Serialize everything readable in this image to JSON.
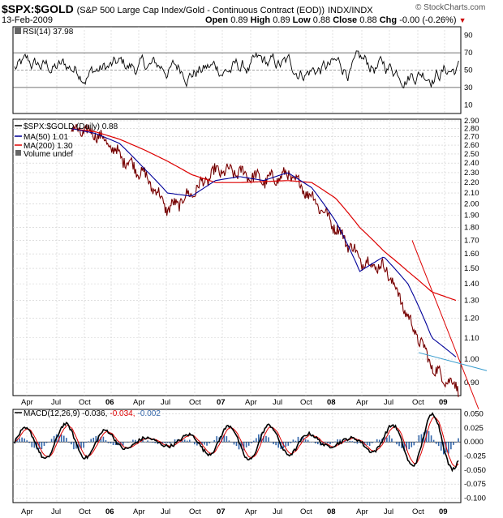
{
  "header": {
    "symbol": "$SPX:$GOLD",
    "description": "(S&P 500 Large Cap Index/Gold - Continuous Contract (EOD))",
    "exchange": "INDX/INDX",
    "date": "13-Feb-2009",
    "open_label": "Open",
    "open": "0.89",
    "high_label": "High",
    "high": "0.89",
    "low_label": "Low",
    "low": "0.88",
    "close_label": "Close",
    "close": "0.88",
    "chg_label": "Chg",
    "chg": "-0.00 (-0.26%)",
    "logo": "© StockCharts.com"
  },
  "chart_data": [
    {
      "type": "line",
      "panel": "rsi",
      "legend": "RSI(14) 37.98",
      "series": [
        {
          "name": "RSI(14)",
          "last": 37.98
        }
      ],
      "yticks": [
        10,
        30,
        50,
        70,
        90
      ],
      "ylim": [
        0,
        100
      ],
      "reference_lines": [
        30,
        50,
        70
      ]
    },
    {
      "type": "line",
      "panel": "price",
      "legend": [
        {
          "text": "$SPX:$GOLD (Daily) 0.88",
          "color": "#000000"
        },
        {
          "text": "MA(50) 1.01",
          "color": "#000099"
        },
        {
          "text": "MA(200) 1.30",
          "color": "#dd0000"
        },
        {
          "text": "Volume undef",
          "color": "#666666"
        }
      ],
      "x_dates": [
        "2005-04",
        "2005-07",
        "2005-10",
        "2006-01",
        "2006-04",
        "2006-07",
        "2006-10",
        "2007-01",
        "2007-04",
        "2007-07",
        "2007-10",
        "2008-01",
        "2008-04",
        "2008-07",
        "2008-10",
        "2009-01",
        "2009-02"
      ],
      "price": [
        2.78,
        2.75,
        2.48,
        2.28,
        1.95,
        2.1,
        2.32,
        2.3,
        2.22,
        2.28,
        2.05,
        1.78,
        1.55,
        1.5,
        1.18,
        0.95,
        0.88
      ],
      "ma50": [
        2.8,
        2.74,
        2.62,
        2.35,
        2.1,
        2.07,
        2.22,
        2.26,
        2.22,
        2.3,
        2.15,
        1.85,
        1.48,
        1.58,
        1.4,
        1.1,
        1.01
      ],
      "ma200": [
        2.8,
        2.76,
        2.67,
        2.55,
        2.42,
        2.28,
        2.2,
        2.2,
        2.21,
        2.22,
        2.2,
        2.05,
        1.8,
        1.62,
        1.48,
        1.35,
        1.3
      ],
      "yticks": [
        0.9,
        1.0,
        1.1,
        1.2,
        1.3,
        1.4,
        1.5,
        1.6,
        1.7,
        1.8,
        1.9,
        2.0,
        2.1,
        2.2,
        2.3,
        2.4,
        2.5,
        2.6,
        2.7,
        2.8,
        2.9
      ],
      "ylim": [
        0.85,
        2.92
      ],
      "scale": "log"
    },
    {
      "type": "line",
      "panel": "macd",
      "legend": [
        {
          "text": "MACD(12,26,9) -0.036,",
          "color": "#000000"
        },
        {
          "text": "-0.034,",
          "color": "#dd0000"
        },
        {
          "text": "-0.002",
          "color": "#3366aa"
        }
      ],
      "yticks": [
        -0.1,
        -0.075,
        -0.05,
        -0.025,
        0.0,
        0.025,
        0.05
      ],
      "ylim": [
        -0.108,
        0.058
      ]
    }
  ],
  "x_axis": {
    "labels": [
      {
        "text": "Apr",
        "bold": false
      },
      {
        "text": "Jul",
        "bold": false
      },
      {
        "text": "Oct",
        "bold": false
      },
      {
        "text": "06",
        "bold": true
      },
      {
        "text": "Apr",
        "bold": false
      },
      {
        "text": "Jul",
        "bold": false
      },
      {
        "text": "Oct",
        "bold": false
      },
      {
        "text": "07",
        "bold": true
      },
      {
        "text": "Apr",
        "bold": false
      },
      {
        "text": "Jul",
        "bold": false
      },
      {
        "text": "Oct",
        "bold": false
      },
      {
        "text": "08",
        "bold": true
      },
      {
        "text": "Apr",
        "bold": false
      },
      {
        "text": "Jul",
        "bold": false
      },
      {
        "text": "Oct",
        "bold": false
      },
      {
        "text": "09",
        "bold": true
      }
    ]
  },
  "colors": {
    "price": "#000000",
    "down": "#aa0000",
    "ma50": "#000099",
    "ma200": "#dd0000",
    "histogram": "#3366aa",
    "grid": "#cccccc",
    "trendline": "#3399cc"
  }
}
